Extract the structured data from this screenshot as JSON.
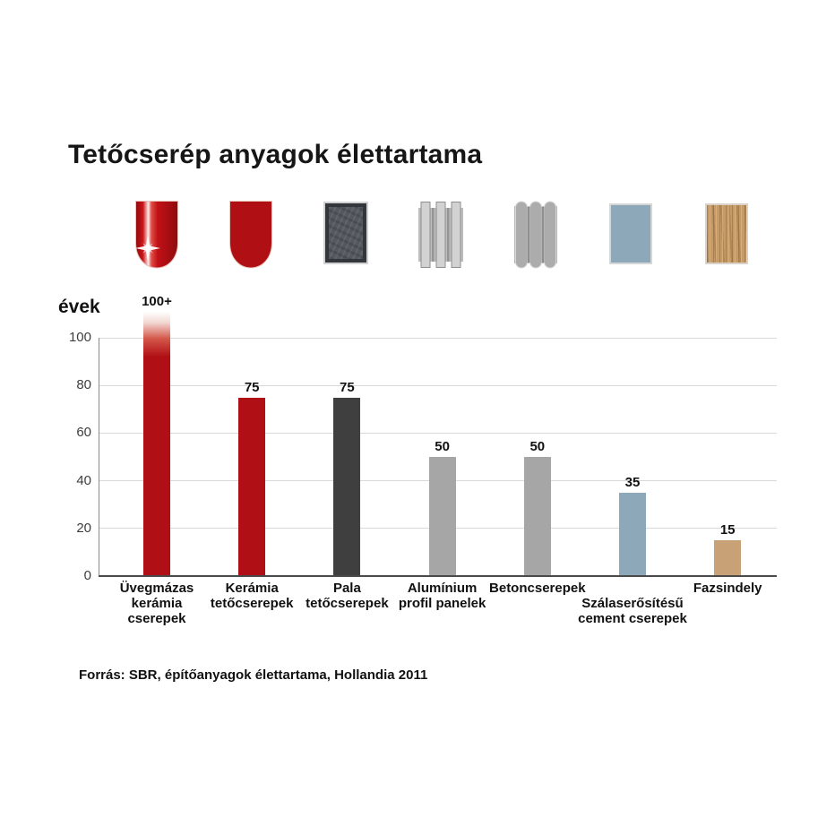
{
  "title": "Tetőcserép anyagok élettartama",
  "source_note": "Forrás: SBR, építőanyagok élettartama, Hollandia 2011",
  "icons": [
    {
      "name": "glazed-ceramic-tile-icon",
      "label": "Üvegmázas kerámia cserepek",
      "color": "#b01014"
    },
    {
      "name": "ceramic-tile-icon",
      "label": "Kerámia tetőcserepek",
      "color": "#b01014"
    },
    {
      "name": "slate-tile-icon",
      "label": "Pala tetőcserepek",
      "color": "#55585e"
    },
    {
      "name": "aluminium-profile-panel-icon",
      "label": "Alumínium profil panelek",
      "color": "#c2c2c2"
    },
    {
      "name": "concrete-tile-icon",
      "label": "Betoncserepek",
      "color": "#b0b0b0"
    },
    {
      "name": "fiber-cement-tile-icon",
      "label": "Szálaserősítésű cement cserepek",
      "color": "#8ca8b9"
    },
    {
      "name": "wood-shingle-icon",
      "label": "Fazsindely",
      "color": "#c59b67"
    }
  ],
  "chart_data": {
    "type": "bar",
    "title": "Tetőcserép anyagok élettartama",
    "xlabel": "",
    "ylabel": "évek",
    "ylim": [
      0,
      100
    ],
    "yticks": [
      0,
      20,
      40,
      60,
      80,
      100
    ],
    "grid": true,
    "legend": "none",
    "bars": [
      {
        "category": "Üvegmázas kerámia cserepek",
        "category_lines": [
          "Üvegmázas",
          "kerámia",
          "cserepek"
        ],
        "value": 100,
        "display_value": "100+",
        "color": "#b01015",
        "overflow": true,
        "label_offset": false
      },
      {
        "category": "Kerámia tetőcserepek",
        "category_lines": [
          "Kerámia",
          "tetőcserepek"
        ],
        "value": 75,
        "display_value": "75",
        "color": "#b01015",
        "overflow": false,
        "label_offset": false
      },
      {
        "category": "Pala tetőcserepek",
        "category_lines": [
          "Pala",
          "tetőcserepek"
        ],
        "value": 75,
        "display_value": "75",
        "color": "#3f3f3f",
        "overflow": false,
        "label_offset": false
      },
      {
        "category": "Alumínium profil panelek",
        "category_lines": [
          "Alumínium",
          "profil panelek"
        ],
        "value": 50,
        "display_value": "50",
        "color": "#a6a6a6",
        "overflow": false,
        "label_offset": false
      },
      {
        "category": "Betoncserepek",
        "category_lines": [
          "Betoncserepek"
        ],
        "value": 50,
        "display_value": "50",
        "color": "#a6a6a6",
        "overflow": false,
        "label_offset": false
      },
      {
        "category": "Szálaserősítésű cement cserepek",
        "category_lines": [
          "Szálaserősítésű",
          "cement cserepek"
        ],
        "value": 35,
        "display_value": "35",
        "color": "#8ca8b9",
        "overflow": false,
        "label_offset": true
      },
      {
        "category": "Fazsindely",
        "category_lines": [
          "Fazsindely"
        ],
        "value": 15,
        "display_value": "15",
        "color": "#c8a276",
        "overflow": false,
        "label_offset": false
      }
    ]
  }
}
